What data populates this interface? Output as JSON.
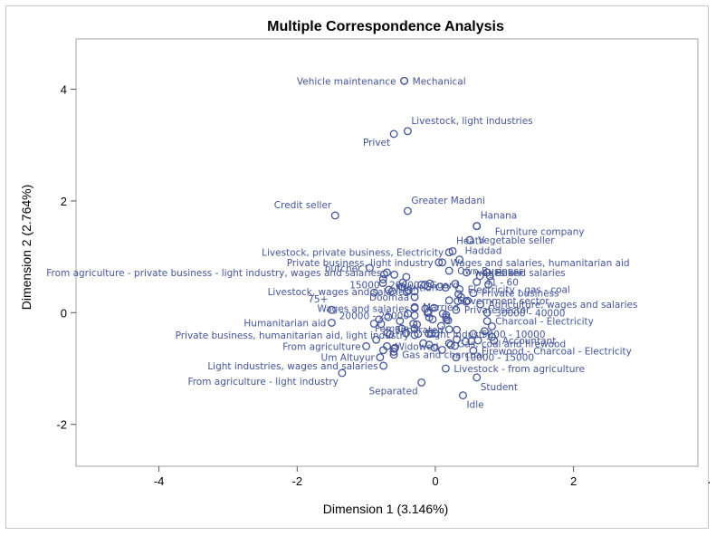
{
  "chart_data": {
    "type": "scatter",
    "title": "Multiple Correspondence Analysis",
    "xlabel": "Dimension 1 (3.146%)",
    "ylabel": "Dimension 2 (2.764%)",
    "xlim": [
      -5.2,
      3.8
    ],
    "ylim": [
      -2.75,
      4.9
    ],
    "xticks": [
      -4,
      -2,
      0,
      2,
      4
    ],
    "yticks": [
      -2,
      0,
      2,
      4
    ],
    "point_color": "#445599",
    "points": [
      {
        "label": "Vehicle maintenance",
        "x": -0.45,
        "y": 4.15,
        "pos": "left"
      },
      {
        "label": "Mechanical",
        "x": -0.45,
        "y": 4.15,
        "pos": "right"
      },
      {
        "label": "Livestock, light industries",
        "x": -0.4,
        "y": 3.25,
        "pos": "upright"
      },
      {
        "label": "Privet",
        "x": -0.6,
        "y": 3.2,
        "pos": "lowleft"
      },
      {
        "label": "Greater Madani",
        "x": -0.4,
        "y": 1.82,
        "pos": "upright"
      },
      {
        "label": "Credit seller",
        "x": -1.45,
        "y": 1.74,
        "pos": "upleft"
      },
      {
        "label": "Hanana",
        "x": 0.6,
        "y": 1.55,
        "pos": "upright"
      },
      {
        "label": "Furniture company",
        "x": 0.6,
        "y": 1.55,
        "pos": "lowright2"
      },
      {
        "label": "Vegetable seller",
        "x": 0.5,
        "y": 1.3,
        "pos": "right"
      },
      {
        "label": "Heath",
        "x": 0.25,
        "y": 1.1,
        "pos": "upright"
      },
      {
        "label": "Haddad",
        "x": 0.35,
        "y": 0.95,
        "pos": "upright2"
      },
      {
        "label": "Livestock, private business, Electricity",
        "x": 0.2,
        "y": 1.08,
        "pos": "leftend"
      },
      {
        "label": "Private business, light industry",
        "x": 0.05,
        "y": 0.9,
        "pos": "leftend"
      },
      {
        "label": "Wages and salaries, humanitarian aid",
        "x": 0.1,
        "y": 0.9,
        "pos": "right"
      },
      {
        "label": "butcher",
        "x": -0.95,
        "y": 0.8,
        "pos": "left"
      },
      {
        "label": "From agriculture - private business - light industry, wages and salaries",
        "x": -0.7,
        "y": 0.72,
        "pos": "leftend"
      },
      {
        "label": "Own Business",
        "x": 0.2,
        "y": 0.75,
        "pos": "right"
      },
      {
        "label": "wages and salaries",
        "x": 0.45,
        "y": 0.72,
        "pos": "right"
      },
      {
        "label": "Baker",
        "x": 0.75,
        "y": 0.72,
        "pos": "right"
      },
      {
        "label": "Livestock, wages and salaries",
        "x": -0.3,
        "y": 0.38,
        "pos": "leftend"
      },
      {
        "label": "Guard",
        "x": -0.2,
        "y": 0.5,
        "pos": "right"
      },
      {
        "label": "41 - 60",
        "x": 0.6,
        "y": 0.55,
        "pos": "right"
      },
      {
        "label": "Electricity - gas - coal",
        "x": 0.35,
        "y": 0.42,
        "pos": "right"
      },
      {
        "label": "Private business",
        "x": 0.55,
        "y": 0.35,
        "pos": "right"
      },
      {
        "label": "Doomaa",
        "x": -0.3,
        "y": 0.28,
        "pos": "leftend"
      },
      {
        "label": "15000 - 20000",
        "x": -0.15,
        "y": 0.5,
        "pos": "leftend"
      },
      {
        "label": "Nutrition",
        "x": 0.15,
        "y": 0.45,
        "pos": "left"
      },
      {
        "label": "Government sector",
        "x": 0.2,
        "y": 0.22,
        "pos": "right"
      },
      {
        "label": "Agriculture, wages and salaries",
        "x": 0.65,
        "y": 0.15,
        "pos": "right"
      },
      {
        "label": "75+",
        "x": -1.5,
        "y": 0.05,
        "pos": "upleft"
      },
      {
        "label": "Wages and salaries",
        "x": -0.3,
        "y": 0.08,
        "pos": "leftend"
      },
      {
        "label": "Married",
        "x": -0.3,
        "y": 0.1,
        "pos": "right"
      },
      {
        "label": "Private sector",
        "x": 0.3,
        "y": 0.05,
        "pos": "right"
      },
      {
        "label": "30000 - 40000",
        "x": 0.75,
        "y": 0.0,
        "pos": "right"
      },
      {
        "label": "20000 - 25000",
        "x": -0.3,
        "y": -0.05,
        "pos": "leftend"
      },
      {
        "label": "Humanitarian aid",
        "x": -1.5,
        "y": -0.18,
        "pos": "leftend"
      },
      {
        "label": "Charcoal - Electricity",
        "x": 0.75,
        "y": -0.15,
        "pos": "right"
      },
      {
        "label": "Female",
        "x": -0.3,
        "y": -0.28,
        "pos": "leftend"
      },
      {
        "label": "Separated",
        "x": 0.2,
        "y": -0.3,
        "pos": "leftend"
      },
      {
        "label": "Private business, humanitarian aid, light industry",
        "x": -0.3,
        "y": -0.4,
        "pos": "leftend"
      },
      {
        "label": "Light industry",
        "x": -0.25,
        "y": -0.38,
        "pos": "right"
      },
      {
        "label": "5000 - 10000",
        "x": 0.55,
        "y": -0.38,
        "pos": "right"
      },
      {
        "label": "Accountant",
        "x": 0.85,
        "y": -0.5,
        "pos": "right"
      },
      {
        "label": "Gas, coal and firewood",
        "x": 0.2,
        "y": -0.55,
        "pos": "right"
      },
      {
        "label": "From agriculture",
        "x": -1.0,
        "y": -0.6,
        "pos": "leftend"
      },
      {
        "label": "Widowed",
        "x": -0.7,
        "y": -0.6,
        "pos": "right"
      },
      {
        "label": "Firewood - Charcoal - Electricity",
        "x": 0.55,
        "y": -0.68,
        "pos": "right"
      },
      {
        "label": "Um Altuyur",
        "x": -0.8,
        "y": -0.8,
        "pos": "leftend"
      },
      {
        "label": "Gas and charcoal",
        "x": -0.6,
        "y": -0.75,
        "pos": "right"
      },
      {
        "label": "10000 - 15000",
        "x": 0.3,
        "y": -0.8,
        "pos": "right"
      },
      {
        "label": "Light industries, wages and salaries",
        "x": -0.75,
        "y": -0.95,
        "pos": "leftend"
      },
      {
        "label": "Livestock - from agriculture",
        "x": 0.15,
        "y": -1.0,
        "pos": "right"
      },
      {
        "label": "From agriculture - light industry",
        "x": -1.35,
        "y": -1.08,
        "pos": "lowleft"
      },
      {
        "label": "Student",
        "x": 0.6,
        "y": -1.16,
        "pos": "lowright"
      },
      {
        "label": "Separated",
        "x": -0.2,
        "y": -1.25,
        "pos": "lowleft"
      },
      {
        "label": "Idle",
        "x": 0.4,
        "y": -1.48,
        "pos": "lowright"
      }
    ]
  }
}
